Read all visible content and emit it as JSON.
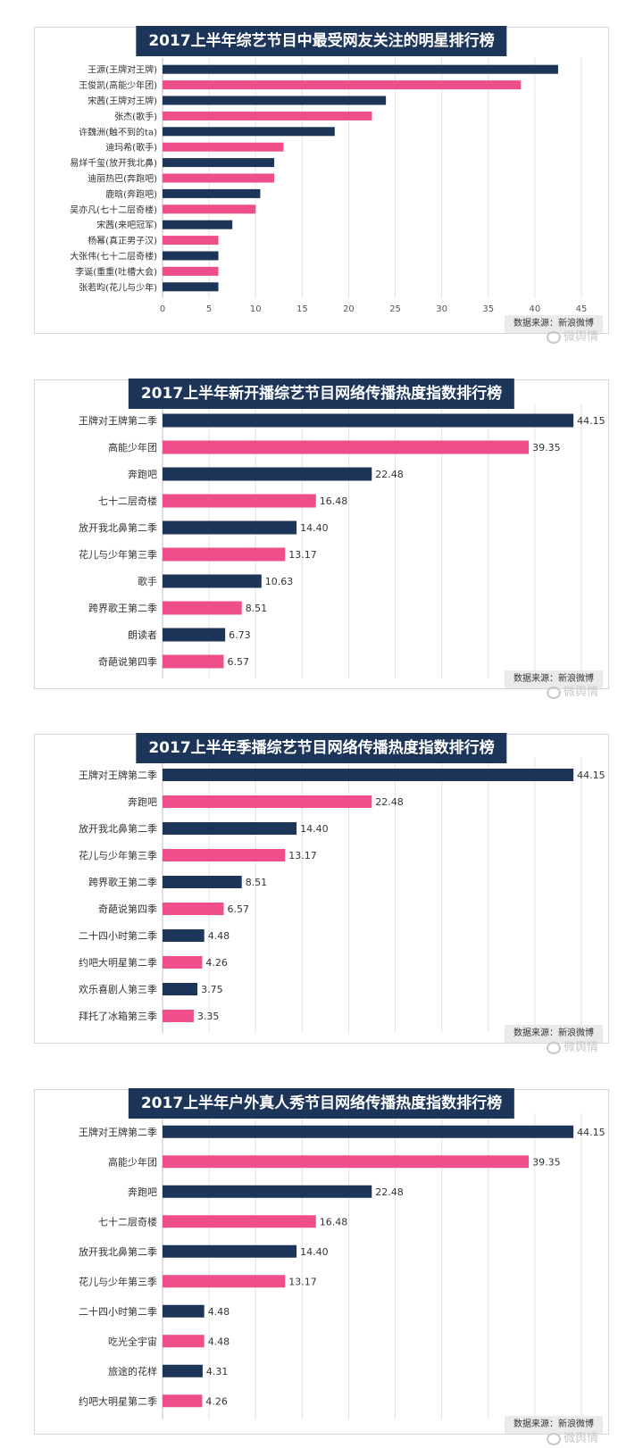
{
  "colors": {
    "navy": "#1c3559",
    "pink": "#ee4f8a",
    "title_bg": "#1c3559",
    "grid": "#e2e2e2"
  },
  "source_label": "数据来源：新浪微博",
  "watermark": "微舆情",
  "chart_data": [
    {
      "type": "bar",
      "orientation": "horizontal",
      "title": "2017上半年综艺节目中最受网友关注的明星排行榜",
      "categories": [
        "王源(王牌对王牌)",
        "王俊凯(高能少年团)",
        "宋茜(王牌对王牌)",
        "张杰(歌手)",
        "许魏洲(触不到的ta)",
        "迪玛希(歌手)",
        "易烊千玺(放开我北鼻)",
        "迪丽热巴(奔跑吧)",
        "鹿晗(奔跑吧)",
        "吴亦凡(七十二层奇楼)",
        "宋茜(来吧冠军)",
        "杨幂(真正男子汉)",
        "大张伟(七十二层奇楼)",
        "李诞(重重(吐槽大会)",
        "张若昀(花儿与少年)"
      ],
      "values": [
        42.5,
        38.5,
        24.0,
        22.5,
        18.5,
        13.0,
        12.0,
        12.0,
        10.5,
        10.0,
        7.5,
        6.0,
        6.0,
        6.0,
        6.0
      ],
      "xlim": [
        0,
        45
      ],
      "xticks": [
        "0",
        "5",
        "10",
        "15",
        "20",
        "25",
        "30",
        "35",
        "40",
        "45"
      ],
      "grid": true,
      "value_labels": false
    },
    {
      "type": "bar",
      "orientation": "horizontal",
      "title": "2017上半年新开播综艺节目网络传播热度指数排行榜",
      "categories": [
        "王牌对王牌第二季",
        "高能少年团",
        "奔跑吧",
        "七十二层奇楼",
        "放开我北鼻第二季",
        "花儿与少年第三季",
        "歌手",
        "跨界歌王第二季",
        "朗读者",
        "奇葩说第四季"
      ],
      "values": [
        44.15,
        39.35,
        22.48,
        16.48,
        14.4,
        13.17,
        10.63,
        8.51,
        6.73,
        6.57
      ],
      "labels": [
        "44.15",
        "39.35",
        "22.48",
        "16.48",
        "14.40",
        "13.17",
        "10.63",
        "8.51",
        "6.73",
        "6.57"
      ],
      "xlim": [
        0,
        45
      ],
      "grid": true,
      "value_labels": true
    },
    {
      "type": "bar",
      "orientation": "horizontal",
      "title": "2017上半年季播综艺节目网络传播热度指数排行榜",
      "categories": [
        "王牌对王牌第二季",
        "奔跑吧",
        "放开我北鼻第二季",
        "花儿与少年第三季",
        "跨界歌王第二季",
        "奇葩说第四季",
        "二十四小时第二季",
        "约吧大明星第二季",
        "欢乐喜剧人第三季",
        "拜托了冰箱第三季"
      ],
      "values": [
        44.15,
        22.48,
        14.4,
        13.17,
        8.51,
        6.57,
        4.48,
        4.26,
        3.75,
        3.35
      ],
      "labels": [
        "44.15",
        "22.48",
        "14.40",
        "13.17",
        "8.51",
        "6.57",
        "4.48",
        "4.26",
        "3.75",
        "3.35"
      ],
      "xlim": [
        0,
        45
      ],
      "grid": true,
      "value_labels": true
    },
    {
      "type": "bar",
      "orientation": "horizontal",
      "title": "2017上半年户外真人秀节目网络传播热度指数排行榜",
      "categories": [
        "王牌对王牌第二季",
        "高能少年团",
        "奔跑吧",
        "七十二层奇楼",
        "放开我北鼻第二季",
        "花儿与少年第三季",
        "二十四小时第二季",
        "吃光全宇宙",
        "旅途的花样",
        "约吧大明星第二季"
      ],
      "values": [
        44.15,
        39.35,
        22.48,
        16.48,
        14.4,
        13.17,
        4.48,
        4.48,
        4.31,
        4.26
      ],
      "labels": [
        "44.15",
        "39.35",
        "22.48",
        "16.48",
        "14.40",
        "13.17",
        "4.48",
        "4.48",
        "4.31",
        "4.26"
      ],
      "xlim": [
        0,
        45
      ],
      "grid": true,
      "value_labels": true
    }
  ]
}
